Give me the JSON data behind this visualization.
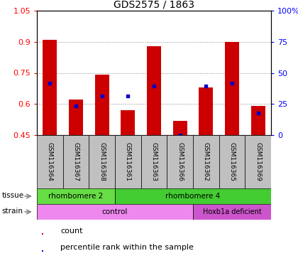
{
  "title": "GDS2575 / 1863",
  "samples": [
    "GSM116364",
    "GSM116367",
    "GSM116368",
    "GSM116361",
    "GSM116363",
    "GSM116366",
    "GSM116362",
    "GSM116365",
    "GSM116369"
  ],
  "red_values": [
    0.91,
    0.62,
    0.74,
    0.57,
    0.88,
    0.52,
    0.68,
    0.9,
    0.59
  ],
  "blue_values": [
    0.7,
    0.59,
    0.64,
    0.64,
    0.685,
    0.449,
    0.685,
    0.7,
    0.555
  ],
  "ymin": 0.45,
  "ymax": 1.05,
  "yticks": [
    0.45,
    0.6,
    0.75,
    0.9,
    1.05
  ],
  "right_yticks": [
    0,
    25,
    50,
    75,
    100
  ],
  "right_ytick_labels": [
    "0",
    "25",
    "50",
    "75",
    "100%"
  ],
  "bar_color": "#cc0000",
  "dot_color": "#0000cc",
  "bg_color": "#c0c0c0",
  "tissue_color1": "#66dd44",
  "tissue_color2": "#44cc33",
  "strain_color1": "#ee88ee",
  "strain_color2": "#cc55cc",
  "legend_count_label": "count",
  "legend_percentile_label": "percentile rank within the sample",
  "bar_width": 0.55
}
